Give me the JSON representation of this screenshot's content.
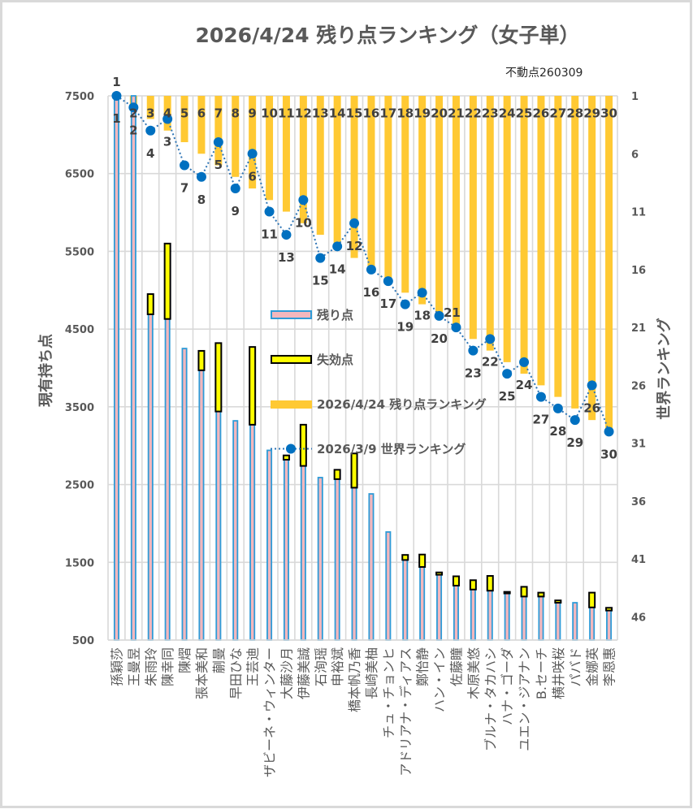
{
  "chart_data": {
    "type": "bar",
    "title": "2026/4/24 残り点ランキング（女子単）",
    "subtitle": "不動点260309",
    "xlabel": "",
    "ylabel": "現有持ち点",
    "y2label": "世界ランキング",
    "ylim": [
      500,
      7500
    ],
    "yticks": [
      7500,
      6500,
      5500,
      4500,
      3500,
      2500,
      1500,
      500
    ],
    "y2lim": [
      1,
      48
    ],
    "y2_reversed": true,
    "y2ticks": [
      1,
      6,
      11,
      16,
      21,
      26,
      31,
      36,
      41,
      46
    ],
    "grid": true,
    "legend_position": "center-left (inside plot)",
    "categories": [
      "孫穎莎",
      "王曼昱",
      "朱雨玲",
      "陳幸同",
      "陳熠",
      "張本美和",
      "蒯曼",
      "早田ひな",
      "王芸迪",
      "ザビーネ・ウィンター",
      "大藤沙月",
      "伊藤美誠",
      "石洵瑶",
      "申裕斌",
      "橋本帆乃香",
      "長崎美柚",
      "チュ・チョンヒ",
      "アドリアナ・ディアス",
      "鄭怡静",
      "ハン・イン",
      "佐藤瞳",
      "木原美悠",
      "ブルナ・タカハシ",
      "ハナ・ゴーダ",
      "ユエン・ジアナン",
      "B.セーチ",
      "横井咲桜",
      "パバド",
      "金娜英",
      "李恩惠"
    ],
    "series": [
      {
        "name": "残り点",
        "type": "bar",
        "axis": "primary",
        "values": [
          7500,
          7500,
          4690,
          4630,
          4250,
          3970,
          3440,
          3320,
          3270,
          2940,
          2820,
          2740,
          2590,
          2570,
          2460,
          2380,
          1890,
          1530,
          1440,
          1340,
          1200,
          1150,
          1135,
          1100,
          1060,
          1060,
          980,
          980,
          920,
          880
        ],
        "note": "first two values reach beyond the axis maximum and are clipped at 7500"
      },
      {
        "name": "失効点",
        "type": "stacked-bar",
        "axis": "primary",
        "stacked_on": "残り点",
        "values": [
          0,
          0,
          260,
          970,
          0,
          250,
          880,
          0,
          1000,
          0,
          55,
          530,
          0,
          120,
          440,
          0,
          0,
          65,
          160,
          30,
          120,
          120,
          190,
          20,
          125,
          50,
          30,
          0,
          190,
          35
        ]
      },
      {
        "name": "2026/4/24 残り点ランキング",
        "type": "bar",
        "axis": "secondary",
        "data_labels": true,
        "values": [
          1,
          2,
          3,
          4,
          5,
          6,
          7,
          8,
          9,
          10,
          11,
          12,
          13,
          14,
          15,
          16,
          17,
          18,
          19,
          20,
          21,
          22,
          23,
          24,
          25,
          26,
          27,
          28,
          29,
          30
        ]
      },
      {
        "name": "2026/3/9 世界ランキング",
        "type": "line",
        "axis": "secondary",
        "data_labels": true,
        "label_placement": "below",
        "label_placement_overrides": {
          "20": "above"
        },
        "values": [
          1,
          2,
          4,
          3,
          7,
          8,
          5,
          9,
          6,
          11,
          13,
          10,
          15,
          14,
          12,
          16,
          17,
          19,
          18,
          20,
          21,
          23,
          22,
          25,
          24,
          27,
          28,
          29,
          26,
          30
        ]
      }
    ],
    "colors": {
      "remaining_fill": "#f3b7bd",
      "remaining_border": "#2f9bd7",
      "expiring_fill": "#ffff00",
      "expiring_border": "#000000",
      "ranking_bar": "#ffc933",
      "world_line": "#2e75b6",
      "world_dot": "#0070c0"
    }
  }
}
